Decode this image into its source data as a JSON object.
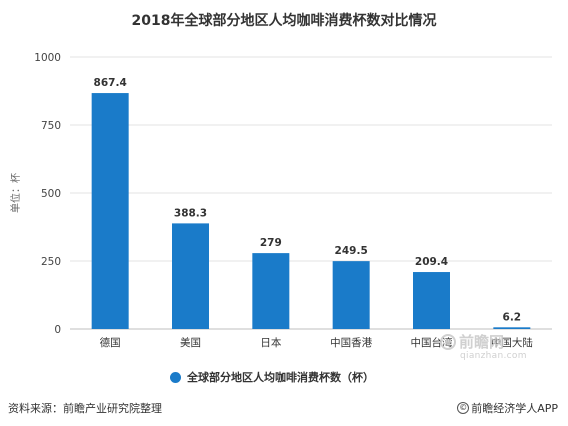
{
  "chart_data": {
    "type": "bar",
    "title": "2018年全球部分地区人均咖啡消费杯数对比情况",
    "ylabel": "单位：杯",
    "xlabel": "",
    "categories": [
      "德国",
      "美国",
      "日本",
      "中国香港",
      "中国台湾",
      "中国大陆"
    ],
    "series": [
      {
        "name": "全球部分地区人均咖啡消费杯数（杯）",
        "values": [
          867.4,
          388.3,
          279,
          249.5,
          209.4,
          6.2
        ]
      }
    ],
    "data_labels": [
      "867.4",
      "388.3",
      "279",
      "249.5",
      "209.4",
      "6.2"
    ],
    "yticks": [
      0,
      250,
      500,
      750,
      1000
    ],
    "ylim": [
      0,
      1000
    ],
    "grid": true,
    "legend_position": "bottom",
    "bar_color": "#1a7bc9"
  },
  "footer": {
    "source": "资料来源：前瞻产业研究院整理",
    "copyright": "前瞻经济学人APP"
  },
  "watermark": {
    "brand": "前瞻网",
    "url": "qianzhan.com"
  }
}
